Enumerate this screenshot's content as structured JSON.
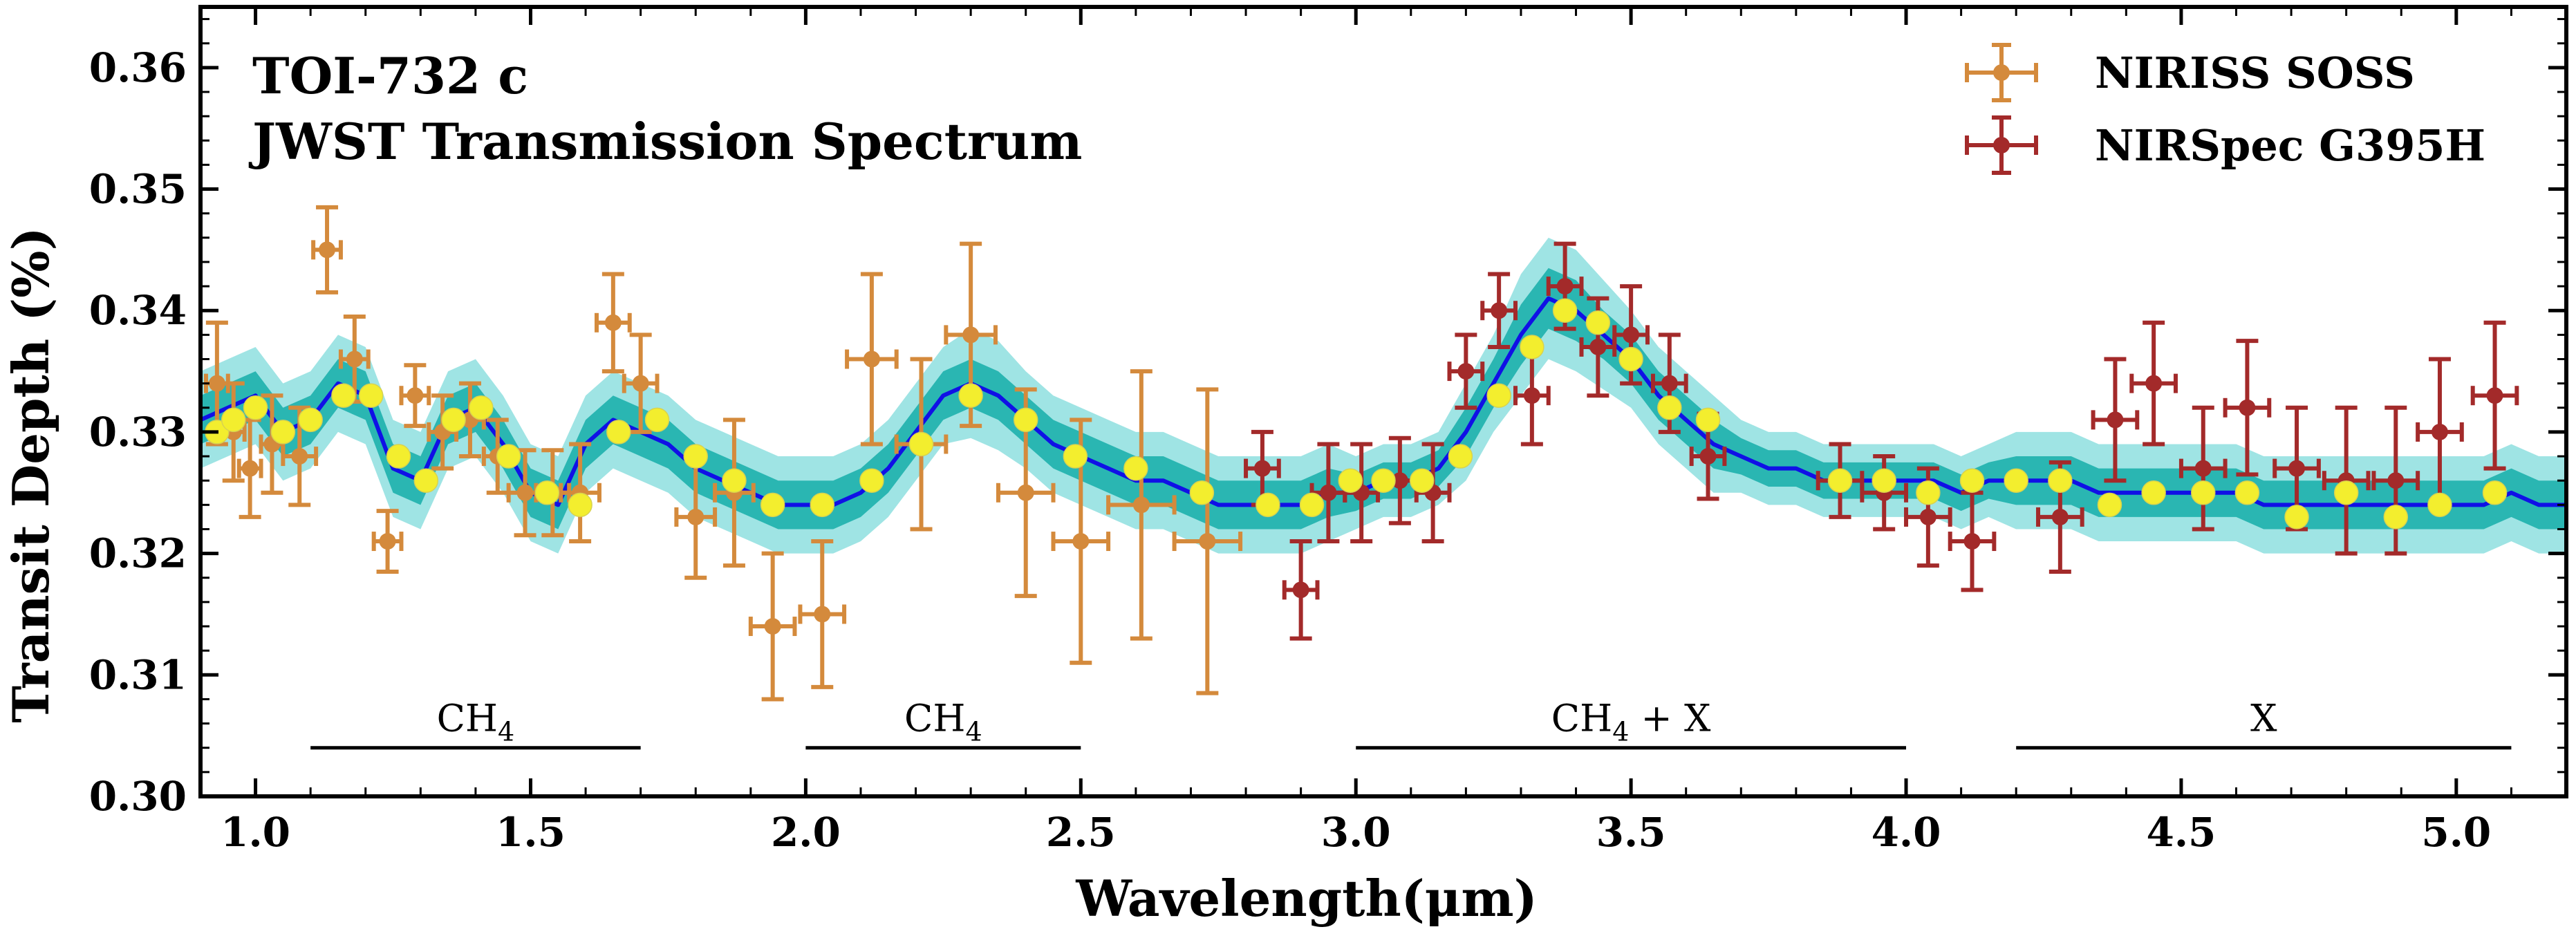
{
  "chart_data": {
    "type": "scatter",
    "title": "TOI-732 c",
    "subtitle": "JWST Transmission Spectrum",
    "xlabel": "Wavelength(μm)",
    "ylabel": "Transit Depth (%)",
    "xlim": [
      0.9,
      5.2
    ],
    "ylim": [
      0.3,
      0.365
    ],
    "xticks": [
      1.0,
      1.5,
      2.0,
      2.5,
      3.0,
      3.5,
      4.0,
      4.5,
      5.0
    ],
    "xtick_labels": [
      "1.0",
      "1.5",
      "2.0",
      "2.5",
      "3.0",
      "3.5",
      "4.0",
      "4.5",
      "5.0"
    ],
    "yticks": [
      0.3,
      0.31,
      0.32,
      0.33,
      0.34,
      0.35,
      0.36
    ],
    "ytick_labels": [
      "0.30",
      "0.31",
      "0.32",
      "0.33",
      "0.34",
      "0.35",
      "0.36"
    ],
    "grid": false,
    "legend": "top-right",
    "colors": {
      "niriss": "#d48a3c",
      "nirspec": "#a32a2a",
      "model": "#1010e6",
      "band1": "#2ab6b2",
      "band2": "#9fe4e4",
      "binned": "#f3ee2e"
    },
    "series": [
      {
        "name": "NIRISS SOSS",
        "color": "#d48a3c",
        "x": [
          0.93,
          0.96,
          0.99,
          1.03,
          1.08,
          1.13,
          1.18,
          1.24,
          1.29,
          1.34,
          1.39,
          1.44,
          1.49,
          1.54,
          1.59,
          1.65,
          1.7,
          1.8,
          1.87,
          1.94,
          2.03,
          2.12,
          2.21,
          2.3,
          2.4,
          2.5,
          2.61,
          2.73
        ],
        "y": [
          0.334,
          0.33,
          0.327,
          0.329,
          0.328,
          0.345,
          0.336,
          0.321,
          0.333,
          0.33,
          0.331,
          0.328,
          0.325,
          0.325,
          0.325,
          0.339,
          0.334,
          0.323,
          0.325,
          0.314,
          0.315,
          0.336,
          0.329,
          0.338,
          0.325,
          0.321,
          0.324,
          0.321
        ],
        "yerr": [
          0.005,
          0.004,
          0.004,
          0.004,
          0.004,
          0.0035,
          0.0035,
          0.0025,
          0.0025,
          0.003,
          0.003,
          0.003,
          0.0035,
          0.0035,
          0.004,
          0.004,
          0.004,
          0.005,
          0.006,
          0.006,
          0.006,
          0.007,
          0.007,
          0.0075,
          0.0085,
          0.01,
          0.011,
          0.0125
        ],
        "xerr": [
          0.02,
          0.02,
          0.02,
          0.02,
          0.03,
          0.025,
          0.025,
          0.025,
          0.025,
          0.025,
          0.025,
          0.025,
          0.03,
          0.03,
          0.035,
          0.03,
          0.03,
          0.035,
          0.035,
          0.04,
          0.04,
          0.045,
          0.045,
          0.045,
          0.05,
          0.05,
          0.06,
          0.06
        ]
      },
      {
        "name": "NIRSpec G395H",
        "color": "#a32a2a",
        "x": [
          2.83,
          2.9,
          2.95,
          3.01,
          3.08,
          3.14,
          3.2,
          3.26,
          3.32,
          3.38,
          3.44,
          3.5,
          3.57,
          3.64,
          3.88,
          3.96,
          4.04,
          4.12,
          4.28,
          4.38,
          4.45,
          4.54,
          4.62,
          4.71,
          4.8,
          4.89,
          4.97,
          5.07
        ],
        "y": [
          0.327,
          0.317,
          0.325,
          0.325,
          0.326,
          0.325,
          0.335,
          0.34,
          0.333,
          0.342,
          0.337,
          0.338,
          0.334,
          0.328,
          0.326,
          0.325,
          0.323,
          0.321,
          0.323,
          0.331,
          0.334,
          0.327,
          0.332,
          0.327,
          0.326,
          0.326,
          0.33,
          0.333
        ],
        "yerr": [
          0.003,
          0.004,
          0.004,
          0.004,
          0.0035,
          0.004,
          0.003,
          0.003,
          0.004,
          0.0035,
          0.004,
          0.004,
          0.004,
          0.0035,
          0.003,
          0.003,
          0.004,
          0.004,
          0.0045,
          0.005,
          0.005,
          0.005,
          0.0055,
          0.005,
          0.006,
          0.006,
          0.006,
          0.006
        ],
        "xerr": [
          0.03,
          0.03,
          0.03,
          0.03,
          0.03,
          0.03,
          0.03,
          0.03,
          0.03,
          0.03,
          0.03,
          0.03,
          0.03,
          0.03,
          0.04,
          0.04,
          0.04,
          0.04,
          0.04,
          0.04,
          0.04,
          0.04,
          0.04,
          0.04,
          0.04,
          0.04,
          0.04,
          0.04
        ]
      },
      {
        "name": "",
        "type": "binned-model",
        "color": "#f3ee2e",
        "x": [
          0.93,
          0.96,
          1.0,
          1.05,
          1.1,
          1.16,
          1.21,
          1.26,
          1.31,
          1.36,
          1.41,
          1.46,
          1.53,
          1.59,
          1.66,
          1.73,
          1.8,
          1.87,
          1.94,
          2.03,
          2.12,
          2.21,
          2.3,
          2.4,
          2.49,
          2.6,
          2.72,
          2.84,
          2.92,
          2.99,
          3.05,
          3.12,
          3.19,
          3.26,
          3.32,
          3.38,
          3.44,
          3.5,
          3.57,
          3.64,
          3.88,
          3.96,
          4.04,
          4.12,
          4.2,
          4.28,
          4.37,
          4.45,
          4.54,
          4.62,
          4.71,
          4.8,
          4.89,
          4.97,
          5.07
        ],
        "y": [
          0.33,
          0.331,
          0.332,
          0.33,
          0.331,
          0.333,
          0.333,
          0.328,
          0.326,
          0.331,
          0.332,
          0.328,
          0.325,
          0.324,
          0.33,
          0.331,
          0.328,
          0.326,
          0.324,
          0.324,
          0.326,
          0.329,
          0.333,
          0.331,
          0.328,
          0.327,
          0.325,
          0.324,
          0.324,
          0.326,
          0.326,
          0.326,
          0.328,
          0.333,
          0.337,
          0.34,
          0.339,
          0.336,
          0.332,
          0.331,
          0.326,
          0.326,
          0.325,
          0.326,
          0.326,
          0.326,
          0.324,
          0.325,
          0.325,
          0.325,
          0.323,
          0.325,
          0.323,
          0.324,
          0.325
        ]
      }
    ],
    "model": {
      "x": [
        0.9,
        0.95,
        1.0,
        1.05,
        1.1,
        1.15,
        1.2,
        1.25,
        1.3,
        1.35,
        1.4,
        1.45,
        1.5,
        1.55,
        1.6,
        1.65,
        1.7,
        1.75,
        1.8,
        1.85,
        1.9,
        1.95,
        2.0,
        2.05,
        2.1,
        2.15,
        2.2,
        2.25,
        2.3,
        2.35,
        2.4,
        2.45,
        2.5,
        2.55,
        2.6,
        2.65,
        2.7,
        2.75,
        2.8,
        2.85,
        2.9,
        2.95,
        3.0,
        3.05,
        3.1,
        3.15,
        3.2,
        3.25,
        3.3,
        3.35,
        3.4,
        3.45,
        3.5,
        3.55,
        3.6,
        3.65,
        3.7,
        3.75,
        3.8,
        3.85,
        3.9,
        3.95,
        4.0,
        4.05,
        4.1,
        4.15,
        4.2,
        4.25,
        4.3,
        4.35,
        4.4,
        4.45,
        4.5,
        4.55,
        4.6,
        4.65,
        4.7,
        4.75,
        4.8,
        4.85,
        4.9,
        4.95,
        5.0,
        5.05,
        5.1,
        5.15,
        5.2
      ],
      "y": [
        0.331,
        0.332,
        0.333,
        0.33,
        0.331,
        0.334,
        0.333,
        0.327,
        0.326,
        0.331,
        0.332,
        0.329,
        0.325,
        0.324,
        0.329,
        0.331,
        0.33,
        0.329,
        0.327,
        0.326,
        0.325,
        0.324,
        0.324,
        0.324,
        0.325,
        0.327,
        0.33,
        0.333,
        0.334,
        0.333,
        0.331,
        0.329,
        0.328,
        0.327,
        0.326,
        0.326,
        0.325,
        0.324,
        0.324,
        0.324,
        0.324,
        0.325,
        0.325,
        0.326,
        0.326,
        0.327,
        0.33,
        0.334,
        0.338,
        0.341,
        0.34,
        0.338,
        0.336,
        0.333,
        0.331,
        0.329,
        0.328,
        0.327,
        0.327,
        0.326,
        0.326,
        0.326,
        0.326,
        0.326,
        0.325,
        0.326,
        0.326,
        0.326,
        0.326,
        0.325,
        0.325,
        0.325,
        0.325,
        0.325,
        0.325,
        0.324,
        0.324,
        0.324,
        0.324,
        0.324,
        0.324,
        0.324,
        0.324,
        0.324,
        0.325,
        0.324,
        0.324
      ],
      "err1": [
        0.002,
        0.002,
        0.002,
        0.002,
        0.002,
        0.002,
        0.002,
        0.002,
        0.002,
        0.002,
        0.002,
        0.002,
        0.002,
        0.002,
        0.002,
        0.002,
        0.002,
        0.002,
        0.002,
        0.002,
        0.002,
        0.002,
        0.002,
        0.002,
        0.002,
        0.002,
        0.002,
        0.002,
        0.002,
        0.002,
        0.002,
        0.002,
        0.002,
        0.002,
        0.002,
        0.002,
        0.002,
        0.002,
        0.002,
        0.002,
        0.002,
        0.002,
        0.0015,
        0.0015,
        0.0015,
        0.0015,
        0.002,
        0.002,
        0.0025,
        0.0025,
        0.0025,
        0.002,
        0.002,
        0.002,
        0.002,
        0.002,
        0.0015,
        0.0015,
        0.0015,
        0.0015,
        0.0015,
        0.0015,
        0.0015,
        0.0015,
        0.0015,
        0.0015,
        0.002,
        0.002,
        0.002,
        0.002,
        0.002,
        0.002,
        0.002,
        0.002,
        0.002,
        0.002,
        0.002,
        0.002,
        0.002,
        0.002,
        0.002,
        0.002,
        0.002,
        0.002,
        0.002,
        0.002,
        0.002
      ],
      "err2": [
        0.004,
        0.004,
        0.004,
        0.004,
        0.004,
        0.004,
        0.004,
        0.004,
        0.004,
        0.004,
        0.004,
        0.004,
        0.004,
        0.004,
        0.004,
        0.004,
        0.004,
        0.004,
        0.004,
        0.004,
        0.004,
        0.004,
        0.004,
        0.004,
        0.004,
        0.004,
        0.004,
        0.004,
        0.0045,
        0.0045,
        0.004,
        0.004,
        0.004,
        0.004,
        0.004,
        0.004,
        0.004,
        0.004,
        0.004,
        0.004,
        0.004,
        0.004,
        0.003,
        0.003,
        0.003,
        0.003,
        0.004,
        0.004,
        0.005,
        0.005,
        0.005,
        0.0045,
        0.004,
        0.004,
        0.004,
        0.004,
        0.003,
        0.003,
        0.003,
        0.003,
        0.003,
        0.003,
        0.003,
        0.003,
        0.003,
        0.003,
        0.004,
        0.004,
        0.004,
        0.004,
        0.004,
        0.004,
        0.004,
        0.004,
        0.004,
        0.004,
        0.004,
        0.004,
        0.004,
        0.004,
        0.004,
        0.004,
        0.004,
        0.004,
        0.004,
        0.004,
        0.004
      ]
    },
    "annotations": [
      {
        "label": "CH",
        "sub": "4",
        "suffix": "",
        "x0": 1.1,
        "x1": 1.7
      },
      {
        "label": "CH",
        "sub": "4",
        "suffix": "",
        "x0": 2.0,
        "x1": 2.5
      },
      {
        "label": "CH",
        "sub": "4",
        "suffix": " + X",
        "x0": 3.0,
        "x1": 4.0
      },
      {
        "label": "X",
        "sub": "",
        "suffix": "",
        "x0": 4.2,
        "x1": 5.1
      }
    ],
    "annotation_y": 0.304
  }
}
